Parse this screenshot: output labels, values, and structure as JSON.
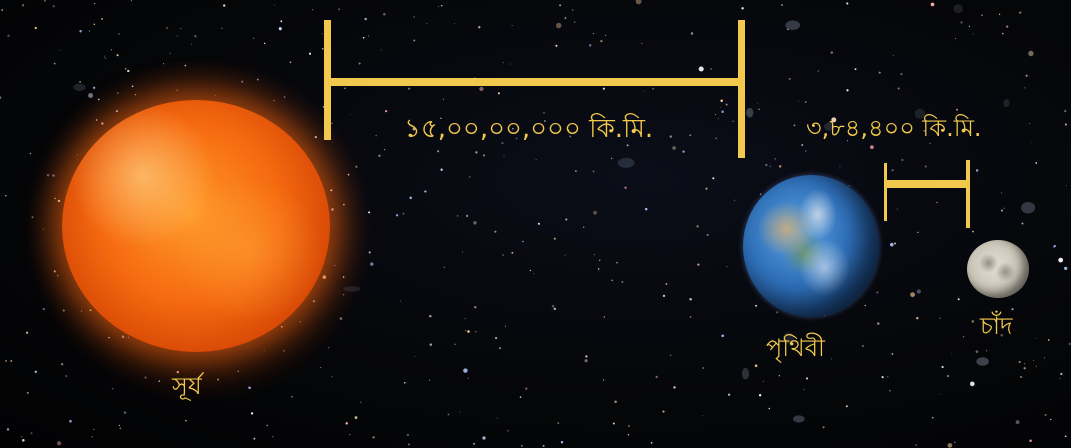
{
  "bodies": {
    "sun": "সূর্য",
    "earth": "পৃথিবী",
    "moon": "চাঁদ"
  },
  "distances": {
    "sun_to_earth": "১৫,০০,০০,০০০ কি.মি.",
    "earth_to_moon": "৩,৮৪,৪০০ কি.মি."
  },
  "colors": {
    "label": "#f2c94c",
    "background": "#050608"
  }
}
